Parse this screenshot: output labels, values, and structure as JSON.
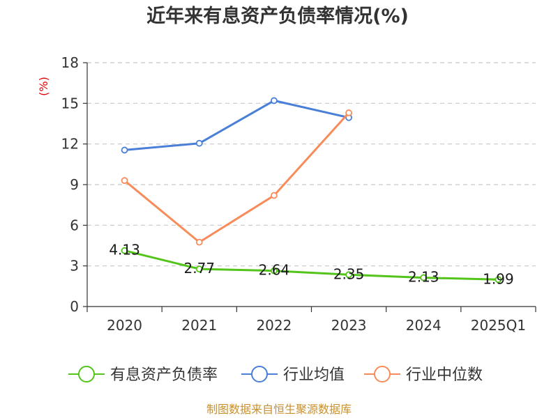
{
  "chart_data": {
    "type": "line",
    "title": "近年来有息资产负债率情况(%)",
    "ylabel": "(%)",
    "xlabel": "",
    "categories": [
      "2020",
      "2021",
      "2022",
      "2023",
      "2024",
      "2025Q1"
    ],
    "ylim": [
      0,
      18
    ],
    "yticks": [
      0,
      3,
      6,
      9,
      12,
      15,
      18
    ],
    "grid": true,
    "legend_position": "bottom",
    "series": [
      {
        "name": "有息资产负债率",
        "color": "#52c41a",
        "values": [
          4.13,
          2.77,
          2.64,
          2.35,
          2.13,
          1.99
        ],
        "labels": [
          "4.13",
          "2.77",
          "2.64",
          "2.35",
          "2.13",
          "1.99"
        ],
        "show_labels": true
      },
      {
        "name": "行业均值",
        "color": "#4a7fd8",
        "values": [
          11.55,
          12.05,
          15.2,
          13.95,
          null,
          null
        ],
        "show_labels": false
      },
      {
        "name": "行业中位数",
        "color": "#f78c5a",
        "values": [
          9.3,
          4.75,
          8.2,
          14.3,
          null,
          null
        ],
        "show_labels": false
      }
    ]
  },
  "source": "制图数据来自恒生聚源数据库"
}
